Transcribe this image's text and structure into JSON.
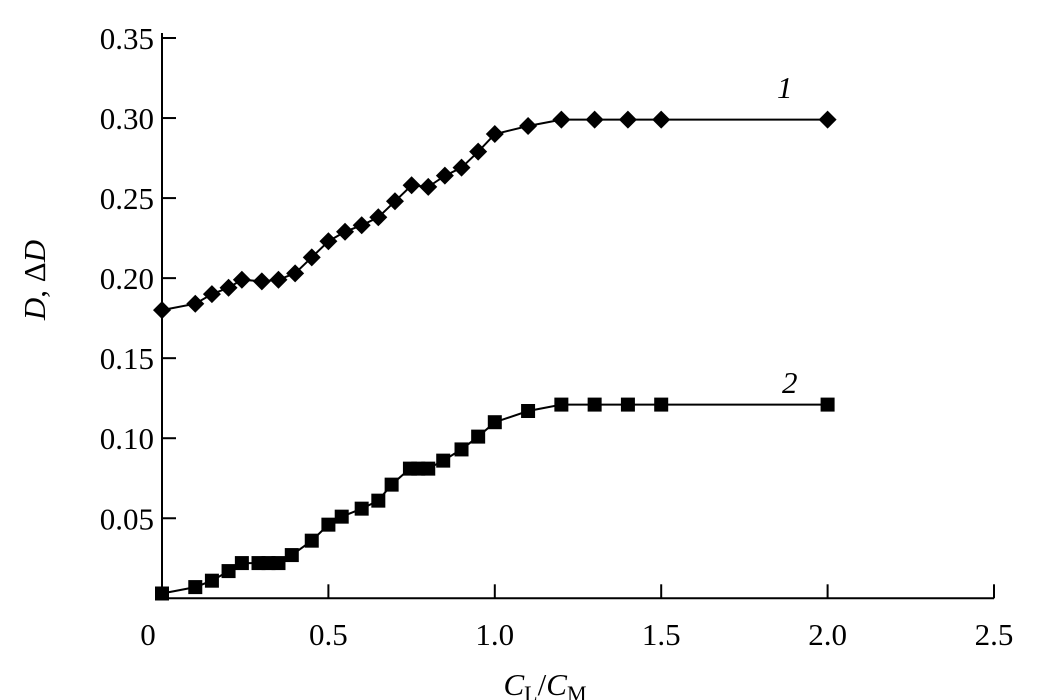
{
  "chart_data": {
    "type": "line",
    "title": "",
    "xlabel": {
      "main": "C",
      "sub1": "L",
      "sep": "/",
      "main2": "C",
      "sub2": "M"
    },
    "ylabel": {
      "d": "D",
      "sep": ", ",
      "delta": "Δ",
      "d2": "D"
    },
    "xlim": [
      0,
      2.5
    ],
    "ylim": [
      0,
      0.35
    ],
    "xticks": [
      "0",
      "0.5",
      "1.0",
      "1.5",
      "2.0",
      "2.5"
    ],
    "yticks": [
      "0.05",
      "0.10",
      "0.15",
      "0.20",
      "0.25",
      "0.30",
      "0.35"
    ],
    "grid": false,
    "series": [
      {
        "name": "1",
        "marker": "diamond",
        "x": [
          0,
          0.1,
          0.15,
          0.2,
          0.24,
          0.3,
          0.35,
          0.4,
          0.45,
          0.5,
          0.55,
          0.6,
          0.65,
          0.7,
          0.75,
          0.8,
          0.85,
          0.9,
          0.95,
          1.0,
          1.1,
          1.2,
          1.3,
          1.4,
          1.5,
          2.0
        ],
        "y": [
          0.18,
          0.184,
          0.19,
          0.194,
          0.199,
          0.198,
          0.199,
          0.203,
          0.213,
          0.223,
          0.229,
          0.233,
          0.238,
          0.248,
          0.258,
          0.257,
          0.264,
          0.269,
          0.279,
          0.29,
          0.295,
          0.299,
          0.299,
          0.299,
          0.299,
          0.299
        ]
      },
      {
        "name": "2",
        "marker": "square",
        "x": [
          0,
          0.1,
          0.15,
          0.2,
          0.24,
          0.29,
          0.32,
          0.35,
          0.39,
          0.45,
          0.5,
          0.54,
          0.6,
          0.65,
          0.69,
          0.745,
          0.77,
          0.8,
          0.845,
          0.9,
          0.95,
          1.0,
          1.1,
          1.2,
          1.3,
          1.4,
          1.5,
          2.0
        ],
        "y": [
          0.003,
          0.007,
          0.011,
          0.017,
          0.022,
          0.022,
          0.022,
          0.022,
          0.027,
          0.036,
          0.046,
          0.051,
          0.056,
          0.061,
          0.071,
          0.081,
          0.081,
          0.081,
          0.086,
          0.093,
          0.101,
          0.11,
          0.117,
          0.121,
          0.121,
          0.121,
          0.121,
          0.121
        ]
      }
    ],
    "color": "#000000"
  }
}
